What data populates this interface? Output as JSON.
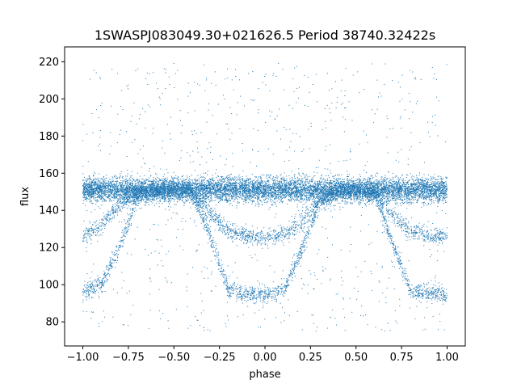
{
  "chart_data": {
    "type": "scatter",
    "title": "1SWASPJ083049.30+021626.5 Period 38740.32422s",
    "xlabel": "phase",
    "ylabel": "flux",
    "xlim": [
      -1.1,
      1.1
    ],
    "ylim": [
      67,
      228
    ],
    "xticks": [
      -1.0,
      -0.75,
      -0.5,
      -0.25,
      0.0,
      0.25,
      0.5,
      0.75,
      1.0
    ],
    "xtick_labels": [
      "−1.00",
      "−0.75",
      "−0.50",
      "−0.25",
      "0.00",
      "0.25",
      "0.50",
      "0.75",
      "1.00"
    ],
    "yticks": [
      80,
      100,
      120,
      140,
      160,
      180,
      200,
      220
    ],
    "ytick_labels": [
      "80",
      "100",
      "120",
      "140",
      "160",
      "180",
      "200",
      "220"
    ],
    "grid": false,
    "marker_color": "#1f77b4",
    "series": [
      {
        "description_key": "primary_eclipse_branch",
        "x": [
          -1.0,
          -0.9,
          -0.8,
          -0.7,
          -0.6,
          -0.5,
          -0.4,
          -0.3,
          -0.2,
          -0.1,
          0.0,
          0.1,
          0.2,
          0.3,
          0.4,
          0.5,
          0.6,
          0.7,
          0.8,
          0.9,
          1.0
        ],
        "y": [
          96,
          100,
          120,
          147,
          151,
          151,
          150,
          126,
          97,
          95,
          95,
          96,
          118,
          144,
          151,
          151,
          150,
          122,
          97,
          95,
          95
        ]
      },
      {
        "description_key": "secondary_eclipse_branch",
        "x": [
          -1.0,
          -0.9,
          -0.8,
          -0.7,
          -0.6,
          -0.5,
          -0.4,
          -0.3,
          -0.2,
          -0.1,
          0.0,
          0.1,
          0.2,
          0.3,
          0.4,
          0.5,
          0.6,
          0.7,
          0.8,
          0.9,
          1.0
        ],
        "y": [
          126,
          132,
          143,
          150,
          151,
          151,
          149,
          138,
          129,
          126,
          125,
          127,
          133,
          145,
          151,
          151,
          148,
          137,
          129,
          126,
          126
        ]
      },
      {
        "description_key": "out_of_eclipse_band",
        "x": [
          -1.0,
          -0.5,
          0.0,
          0.5,
          1.0
        ],
        "y": [
          151,
          151,
          151,
          151,
          151
        ]
      }
    ]
  }
}
